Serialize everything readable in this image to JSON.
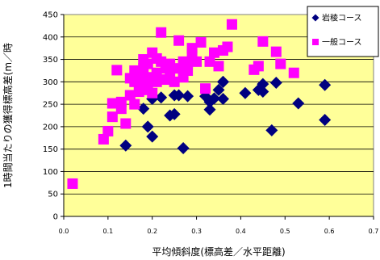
{
  "chart_data": {
    "type": "scatter",
    "xlabel": "平均傾斜度(標高差／水平距離)",
    "ylabel": "1時間当たりの獲得標高差(m／時",
    "xlim": [
      0,
      0.7
    ],
    "ylim": [
      0,
      450
    ],
    "xticks": [
      "0.0",
      "0.1",
      "0.2",
      "0.3",
      "0.4",
      "0.5",
      "0.6",
      "0.7"
    ],
    "yticks": [
      "0",
      "50",
      "100",
      "150",
      "200",
      "250",
      "300",
      "350",
      "400",
      "450"
    ],
    "grid": true,
    "legend_position": "top-right",
    "plot_background": "#ffff99",
    "series": [
      {
        "name": "岩稜コース",
        "color": "#000080",
        "marker": "diamond",
        "points": [
          [
            0.14,
            158
          ],
          [
            0.18,
            240
          ],
          [
            0.19,
            200
          ],
          [
            0.2,
            178
          ],
          [
            0.2,
            262
          ],
          [
            0.22,
            265
          ],
          [
            0.24,
            225
          ],
          [
            0.25,
            228
          ],
          [
            0.25,
            270
          ],
          [
            0.26,
            270
          ],
          [
            0.27,
            152
          ],
          [
            0.28,
            268
          ],
          [
            0.32,
            268
          ],
          [
            0.33,
            238
          ],
          [
            0.33,
            255
          ],
          [
            0.34,
            263
          ],
          [
            0.35,
            282
          ],
          [
            0.36,
            262
          ],
          [
            0.36,
            300
          ],
          [
            0.41,
            275
          ],
          [
            0.44,
            282
          ],
          [
            0.45,
            278
          ],
          [
            0.45,
            295
          ],
          [
            0.47,
            192
          ],
          [
            0.48,
            298
          ],
          [
            0.53,
            252
          ],
          [
            0.59,
            293
          ],
          [
            0.59,
            215
          ],
          [
            0.36,
            300
          ]
        ]
      },
      {
        "name": "一般コース",
        "color": "#ff00ff",
        "marker": "square",
        "points": [
          [
            0.02,
            73
          ],
          [
            0.09,
            172
          ],
          [
            0.1,
            190
          ],
          [
            0.11,
            222
          ],
          [
            0.11,
            252
          ],
          [
            0.12,
            326
          ],
          [
            0.13,
            240
          ],
          [
            0.13,
            255
          ],
          [
            0.14,
            207
          ],
          [
            0.15,
            308
          ],
          [
            0.15,
            270
          ],
          [
            0.16,
            325
          ],
          [
            0.16,
            300
          ],
          [
            0.16,
            250
          ],
          [
            0.17,
            278
          ],
          [
            0.17,
            303
          ],
          [
            0.17,
            320
          ],
          [
            0.18,
            350
          ],
          [
            0.18,
            330
          ],
          [
            0.18,
            282
          ],
          [
            0.19,
            310
          ],
          [
            0.19,
            295
          ],
          [
            0.19,
            340
          ],
          [
            0.2,
            275
          ],
          [
            0.2,
            365
          ],
          [
            0.21,
            352
          ],
          [
            0.21,
            320
          ],
          [
            0.21,
            300
          ],
          [
            0.22,
            410
          ],
          [
            0.22,
            345
          ],
          [
            0.23,
            330
          ],
          [
            0.23,
            305
          ],
          [
            0.24,
            320
          ],
          [
            0.24,
            340
          ],
          [
            0.25,
            300
          ],
          [
            0.26,
            330
          ],
          [
            0.26,
            392
          ],
          [
            0.27,
            345
          ],
          [
            0.27,
            310
          ],
          [
            0.28,
            340
          ],
          [
            0.28,
            325
          ],
          [
            0.29,
            360
          ],
          [
            0.29,
            375
          ],
          [
            0.3,
            345
          ],
          [
            0.31,
            388
          ],
          [
            0.32,
            285
          ],
          [
            0.33,
            345
          ],
          [
            0.34,
            365
          ],
          [
            0.35,
            335
          ],
          [
            0.36,
            370
          ],
          [
            0.37,
            378
          ],
          [
            0.38,
            428
          ],
          [
            0.43,
            327
          ],
          [
            0.44,
            335
          ],
          [
            0.45,
            390
          ],
          [
            0.48,
            367
          ],
          [
            0.49,
            340
          ],
          [
            0.52,
            320
          ]
        ]
      }
    ]
  }
}
